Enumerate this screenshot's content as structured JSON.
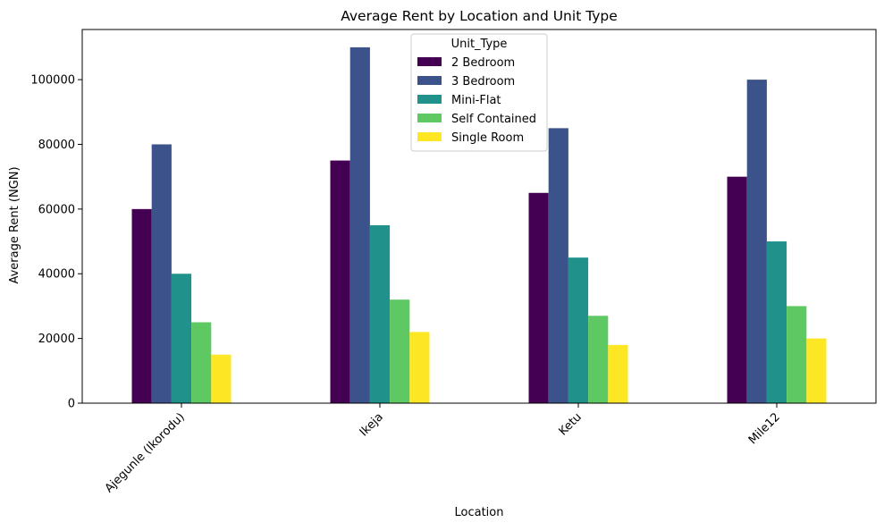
{
  "chart_data": {
    "type": "bar",
    "title": "Average Rent by Location and Unit Type",
    "xlabel": "Location",
    "ylabel": "Average Rent (NGN)",
    "categories": [
      "Ajegunle (Ikorodu)",
      "Ikeja",
      "Ketu",
      "Mile12"
    ],
    "ylim": [
      0,
      115500
    ],
    "yticks": [
      0,
      20000,
      40000,
      60000,
      80000,
      100000
    ],
    "grid": false,
    "legend": {
      "title": "Unit_Type",
      "placement": "upper-center"
    },
    "series": [
      {
        "name": "2 Bedroom",
        "color": "#440154",
        "values": [
          60000,
          75000,
          65000,
          70000
        ]
      },
      {
        "name": "3 Bedroom",
        "color": "#3b528b",
        "values": [
          80000,
          110000,
          85000,
          100000
        ]
      },
      {
        "name": "Mini-Flat",
        "color": "#21918c",
        "values": [
          40000,
          55000,
          45000,
          50000
        ]
      },
      {
        "name": "Self Contained",
        "color": "#5ec962",
        "values": [
          25000,
          32000,
          27000,
          30000
        ]
      },
      {
        "name": "Single Room",
        "color": "#fde725",
        "values": [
          15000,
          22000,
          18000,
          20000
        ]
      }
    ]
  }
}
